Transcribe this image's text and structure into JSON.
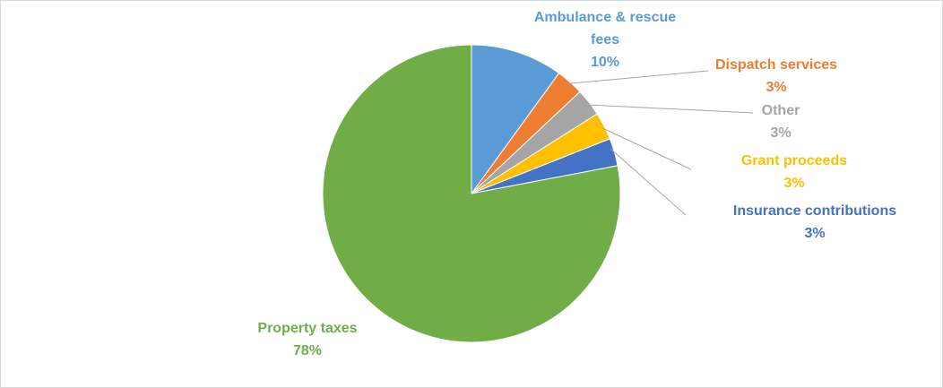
{
  "chart_data": {
    "type": "pie",
    "slices": [
      {
        "label": "Ambulance & rescue fees",
        "label_lines": [
          "Ambulance & rescue",
          "fees"
        ],
        "pct_text": "10%",
        "value": 10,
        "color": "#5b9bd5"
      },
      {
        "label": "Dispatch services",
        "label_lines": [
          "Dispatch services"
        ],
        "pct_text": "3%",
        "value": 3,
        "color": "#ed7d31"
      },
      {
        "label": "Other",
        "label_lines": [
          "Other"
        ],
        "pct_text": "3%",
        "value": 3,
        "color": "#a5a5a5"
      },
      {
        "label": "Grant proceeds",
        "label_lines": [
          "Grant proceeds"
        ],
        "pct_text": "3%",
        "value": 3,
        "color": "#ffc000"
      },
      {
        "label": "Insurance contributions",
        "label_lines": [
          "Insurance contributions"
        ],
        "pct_text": "3%",
        "value": 3,
        "color": "#4472c4"
      },
      {
        "label": "Property taxes",
        "label_lines": [
          "Property taxes"
        ],
        "pct_text": "78%",
        "value": 78,
        "color": "#70ad47"
      }
    ],
    "legend": "none",
    "data_labels": "category name and percentage",
    "start_angle": "12 o'clock, clockwise"
  }
}
